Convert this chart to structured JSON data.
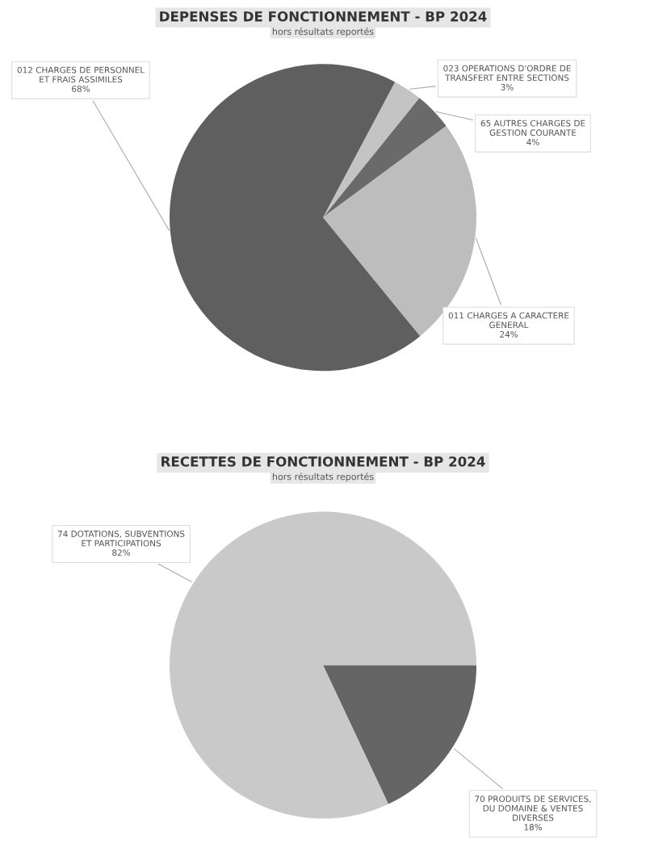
{
  "chart_data": [
    {
      "type": "pie",
      "title": "DEPENSES DE FONCTIONNEMENT - BP 2024",
      "subtitle": "hors résultats reportés",
      "categories": [
        "023 OPERATIONS D'ORDRE DE\nTRANSFERT ENTRE SECTIONS",
        "65 AUTRES CHARGES DE\nGESTION COURANTE",
        "011 CHARGES A CARACTERE\nGENERAL",
        "012 CHARGES DE PERSONNEL\nET FRAIS ASSIMILES"
      ],
      "values": [
        3,
        4,
        24,
        68
      ],
      "value_labels": [
        "3%",
        "4%",
        "24%",
        "68%"
      ],
      "colors": [
        "#c4c4c4",
        "#6a6a6a",
        "#bdbdbd",
        "#5f5f5f"
      ]
    },
    {
      "type": "pie",
      "title": "RECETTES DE FONCTIONNEMENT - BP 2024",
      "subtitle": "hors résultats reportés",
      "categories": [
        "70 PRODUITS DE SERVICES,\nDU DOMAINE & VENTES\nDIVERSES",
        "74 DOTATIONS, SUBVENTIONS\nET PARTICIPATIONS"
      ],
      "values": [
        18,
        82
      ],
      "value_labels": [
        "18%",
        "82%"
      ],
      "colors": [
        "#656565",
        "#c9c9c9"
      ]
    }
  ]
}
